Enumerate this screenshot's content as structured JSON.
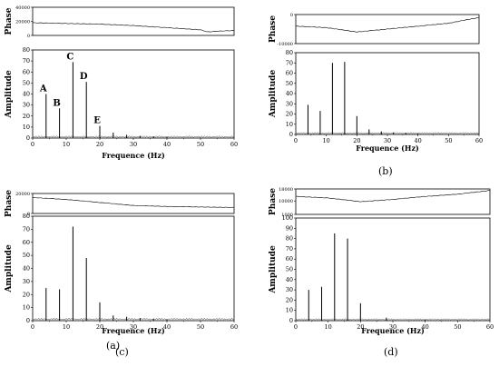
{
  "figure": {
    "panels": [
      {
        "caption": "(a)"
      },
      {
        "caption": "(b)"
      },
      {
        "caption": "(c)"
      },
      {
        "caption": "(d)"
      }
    ]
  },
  "chart_data": [
    {
      "type": "line",
      "panel": "(a)",
      "xlabel": "Frequence (Hz)",
      "xlim": [
        0,
        60
      ],
      "xticks": [
        0,
        10,
        20,
        30,
        40,
        50,
        60
      ],
      "phase": {
        "ylabel": "Phase",
        "ylim": [
          0,
          40000
        ],
        "yticks": [
          0,
          20000,
          40000
        ],
        "x": [
          0,
          10,
          20,
          30,
          40,
          50,
          52,
          55,
          60
        ],
        "y": [
          18000,
          17000,
          16000,
          14000,
          11000,
          8000,
          5000,
          6000,
          7000
        ]
      },
      "amplitude": {
        "ylabel": "Amplitude",
        "ylim": [
          0,
          80
        ],
        "yticks": [
          0,
          10,
          20,
          30,
          40,
          50,
          60,
          70,
          80
        ],
        "peaks": [
          {
            "x": 4,
            "y": 40,
            "label": "A"
          },
          {
            "x": 8,
            "y": 27,
            "label": "B"
          },
          {
            "x": 12,
            "y": 69,
            "label": "C"
          },
          {
            "x": 16,
            "y": 51,
            "label": "D"
          },
          {
            "x": 20,
            "y": 11,
            "label": "E"
          },
          {
            "x": 24,
            "y": 5
          },
          {
            "x": 28,
            "y": 3
          },
          {
            "x": 32,
            "y": 2
          },
          {
            "x": 36,
            "y": 1.5
          },
          {
            "x": 40,
            "y": 1
          }
        ]
      }
    },
    {
      "type": "line",
      "panel": "(b)",
      "xlabel": "Frequence (Hz)",
      "xlim": [
        0,
        60
      ],
      "xticks": [
        0,
        10,
        20,
        30,
        40,
        50,
        60
      ],
      "phase": {
        "ylabel": "Phase",
        "ylim": [
          -10000,
          0
        ],
        "yticks": [
          -10000,
          0
        ],
        "x": [
          0,
          10,
          20,
          30,
          40,
          50,
          60
        ],
        "y": [
          -4000,
          -4500,
          -6000,
          -5000,
          -4000,
          -3000,
          -1000
        ]
      },
      "amplitude": {
        "ylabel": "Amplitude",
        "ylim": [
          0,
          80
        ],
        "yticks": [
          0,
          10,
          20,
          30,
          40,
          50,
          60,
          70,
          80
        ],
        "peaks": [
          {
            "x": 4,
            "y": 29
          },
          {
            "x": 8,
            "y": 23
          },
          {
            "x": 12,
            "y": 70
          },
          {
            "x": 16,
            "y": 71
          },
          {
            "x": 20,
            "y": 18
          },
          {
            "x": 24,
            "y": 5
          },
          {
            "x": 28,
            "y": 3
          },
          {
            "x": 32,
            "y": 2
          },
          {
            "x": 36,
            "y": 1.5
          },
          {
            "x": 40,
            "y": 1
          }
        ]
      }
    },
    {
      "type": "line",
      "panel": "(c)",
      "xlabel": "Frequence (Hz)",
      "xlim": [
        0,
        60
      ],
      "xticks": [
        0,
        10,
        20,
        30,
        40,
        50,
        60
      ],
      "phase": {
        "ylabel": "Phase",
        "ylim": [
          0,
          20000
        ],
        "yticks": [
          0,
          20000
        ],
        "x": [
          0,
          10,
          20,
          30,
          40,
          50,
          60
        ],
        "y": [
          16000,
          14000,
          11000,
          8000,
          7000,
          6500,
          6000
        ]
      },
      "amplitude": {
        "ylabel": "Amplitude",
        "ylim": [
          0,
          80
        ],
        "yticks": [
          0,
          10,
          20,
          30,
          40,
          50,
          60,
          70,
          80
        ],
        "peaks": [
          {
            "x": 4,
            "y": 25
          },
          {
            "x": 8,
            "y": 24
          },
          {
            "x": 12,
            "y": 72
          },
          {
            "x": 16,
            "y": 48
          },
          {
            "x": 20,
            "y": 14
          },
          {
            "x": 24,
            "y": 4
          },
          {
            "x": 28,
            "y": 3
          },
          {
            "x": 32,
            "y": 2
          },
          {
            "x": 36,
            "y": 1.5
          },
          {
            "x": 40,
            "y": 1
          }
        ]
      }
    },
    {
      "type": "line",
      "panel": "(d)",
      "xlabel": "Frequence (Hz)",
      "xlim": [
        0,
        60
      ],
      "xticks": [
        0,
        10,
        20,
        30,
        40,
        50,
        60
      ],
      "phase": {
        "ylabel": "Phase",
        "ylim": [
          1000,
          18000
        ],
        "yticks": [
          1000,
          10000,
          18000
        ],
        "x": [
          0,
          10,
          20,
          30,
          40,
          50,
          60
        ],
        "y": [
          13000,
          12000,
          9500,
          11000,
          13000,
          14500,
          17000
        ]
      },
      "amplitude": {
        "ylabel": "Amplitude",
        "ylim": [
          0,
          100
        ],
        "yticks": [
          0,
          10,
          20,
          30,
          40,
          50,
          60,
          70,
          80,
          90,
          100
        ],
        "peaks": [
          {
            "x": 4,
            "y": 30
          },
          {
            "x": 8,
            "y": 33
          },
          {
            "x": 12,
            "y": 85
          },
          {
            "x": 16,
            "y": 80
          },
          {
            "x": 20,
            "y": 17
          },
          {
            "x": 28,
            "y": 3
          },
          {
            "x": 40,
            "y": 1
          }
        ]
      }
    }
  ]
}
